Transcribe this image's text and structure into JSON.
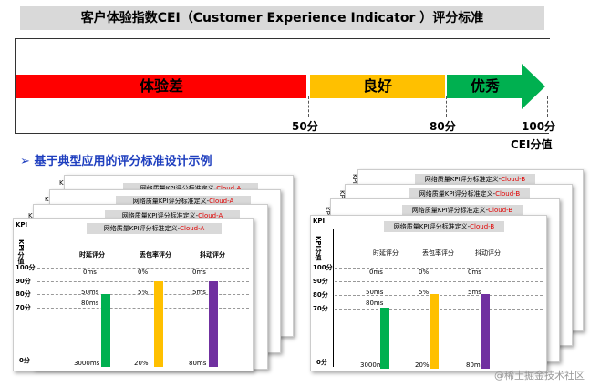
{
  "title": "客户体验指数CEI（Customer Experience Indicator ）评分标准",
  "scale": {
    "bands": [
      {
        "label": "体验差",
        "color": "#ff0000"
      },
      {
        "label": "良好",
        "color": "#ffc000"
      },
      {
        "label": "优秀",
        "color": "#00b050"
      }
    ],
    "ticks": [
      "50分",
      "80分",
      "100分"
    ],
    "axis_label": "CEI分值"
  },
  "section": {
    "bullet": "➢",
    "title": "基于典型应用的评分标准设计示例"
  },
  "left_example": {
    "title_prefix": "网络质量KPI评分标准定义-",
    "title_suffix": "Cloud-A",
    "stack_labels": [
      "KPI",
      "K",
      "K",
      "K"
    ],
    "y_axis_label": "KPI分值",
    "columns": [
      "时延评分",
      "丢包率评分",
      "抖动评分"
    ],
    "score_levels": [
      "100分",
      "90分",
      "80分",
      "70分",
      "0分"
    ],
    "col1_values": [
      "0ms",
      "50ms",
      "80ms",
      "3000ms"
    ],
    "col2_values": [
      "0%",
      "5%",
      "20%"
    ],
    "col3_values": [
      "0ms",
      "5ms",
      "80ms"
    ],
    "bar_colors": [
      "#00b050",
      "#ffc000",
      "#7030a0"
    ],
    "bar_scores": [
      80,
      90,
      90
    ]
  },
  "right_example": {
    "title_prefix": "网络质量KPI评分标准定义-",
    "title_suffix": "Cloud-B",
    "stack_labels": [
      "KPI",
      "KPI",
      "KPI",
      "KPI"
    ],
    "y_axis_label": "KPI分值",
    "columns": [
      "时延评分",
      "丢包率评分",
      "抖动评分"
    ],
    "score_levels": [
      "100分",
      "90分",
      "80分",
      "70分",
      "0分"
    ],
    "col1_values": [
      "0ms",
      "50ms",
      "80ms",
      "3000ms"
    ],
    "col2_values": [
      "0%",
      "5%",
      "20%"
    ],
    "col3_values": [
      "0ms",
      "5ms",
      "80ms"
    ],
    "bar_colors": [
      "#00b050",
      "#ffc000",
      "#7030a0"
    ],
    "bar_scores": [
      70,
      80,
      80
    ]
  },
  "watermark": "@稀土掘金技术社区"
}
